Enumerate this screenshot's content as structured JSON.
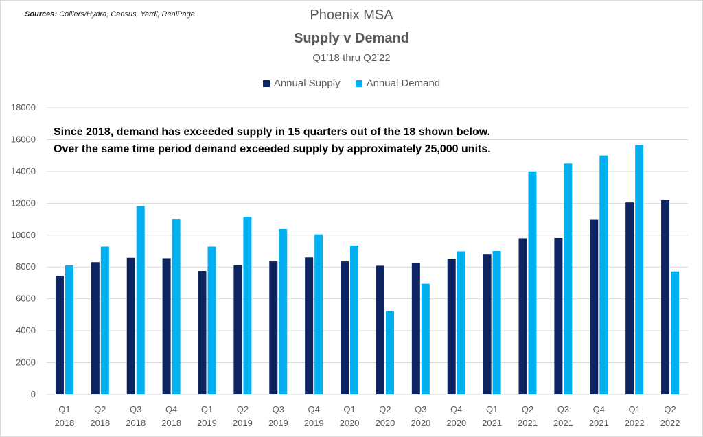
{
  "sources": {
    "label": "Sources:",
    "text": "Colliers/Hydra, Census, Yardi, RealPage"
  },
  "chart_data": {
    "type": "bar",
    "title": "Phoenix MSA",
    "subtitle": "Supply v Demand",
    "period": "Q1'18 thru Q2'22",
    "annotation": [
      "Since 2018, demand has exceeded supply in 15 quarters out of the 18 shown below.",
      "Over the same time period demand exceeded supply by approximately 25,000 units."
    ],
    "categories": [
      [
        "Q1",
        "2018"
      ],
      [
        "Q2",
        "2018"
      ],
      [
        "Q3",
        "2018"
      ],
      [
        "Q4",
        "2018"
      ],
      [
        "Q1",
        "2019"
      ],
      [
        "Q2",
        "2019"
      ],
      [
        "Q3",
        "2019"
      ],
      [
        "Q4",
        "2019"
      ],
      [
        "Q1",
        "2020"
      ],
      [
        "Q2",
        "2020"
      ],
      [
        "Q3",
        "2020"
      ],
      [
        "Q4",
        "2020"
      ],
      [
        "Q1",
        "2021"
      ],
      [
        "Q2",
        "2021"
      ],
      [
        "Q3",
        "2021"
      ],
      [
        "Q4",
        "2021"
      ],
      [
        "Q1",
        "2022"
      ],
      [
        "Q2",
        "2022"
      ]
    ],
    "series": [
      {
        "name": "Annual Supply",
        "color": "#0d2461",
        "values": [
          7450,
          8300,
          8580,
          8550,
          7750,
          8100,
          8350,
          8600,
          8350,
          8080,
          8250,
          8520,
          8820,
          9800,
          9820,
          11000,
          12050,
          12200
        ]
      },
      {
        "name": "Annual Demand",
        "color": "#00b0f0",
        "values": [
          8100,
          9280,
          11820,
          11020,
          9280,
          11150,
          10380,
          10050,
          9350,
          5250,
          6950,
          8980,
          9000,
          14000,
          14500,
          15000,
          15650,
          7720
        ]
      }
    ],
    "ylim": [
      0,
      18000
    ],
    "yticks": [
      0,
      2000,
      4000,
      6000,
      8000,
      10000,
      12000,
      14000,
      16000,
      18000
    ],
    "grid": true,
    "legend_position": "top-center"
  }
}
